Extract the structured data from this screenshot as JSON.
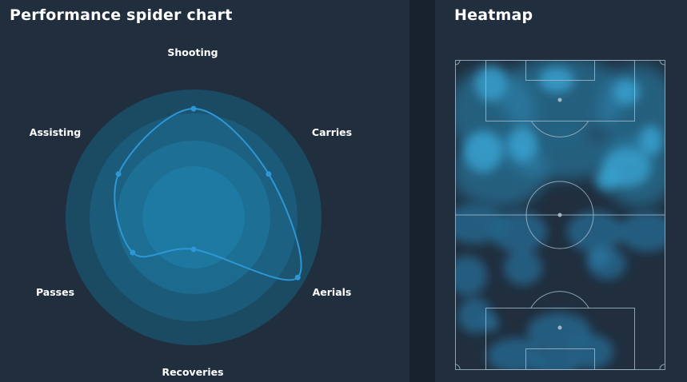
{
  "spider": {
    "title": "Performance spider chart",
    "axes": [
      "Shooting",
      "Carries",
      "Aerials",
      "Recoveries",
      "Passes",
      "Assisting"
    ],
    "values": [
      0.8,
      0.57,
      0.92,
      0.0,
      0.4,
      0.57
    ],
    "colors": {
      "line": "#2d97d6",
      "fill_core": "#1f7ca2",
      "fill_outer": "#1b5f80"
    }
  },
  "heatmap": {
    "title": "Heatmap",
    "colors": {
      "glow": "#3aa1cf",
      "lines": "#9fb6c6"
    }
  }
}
